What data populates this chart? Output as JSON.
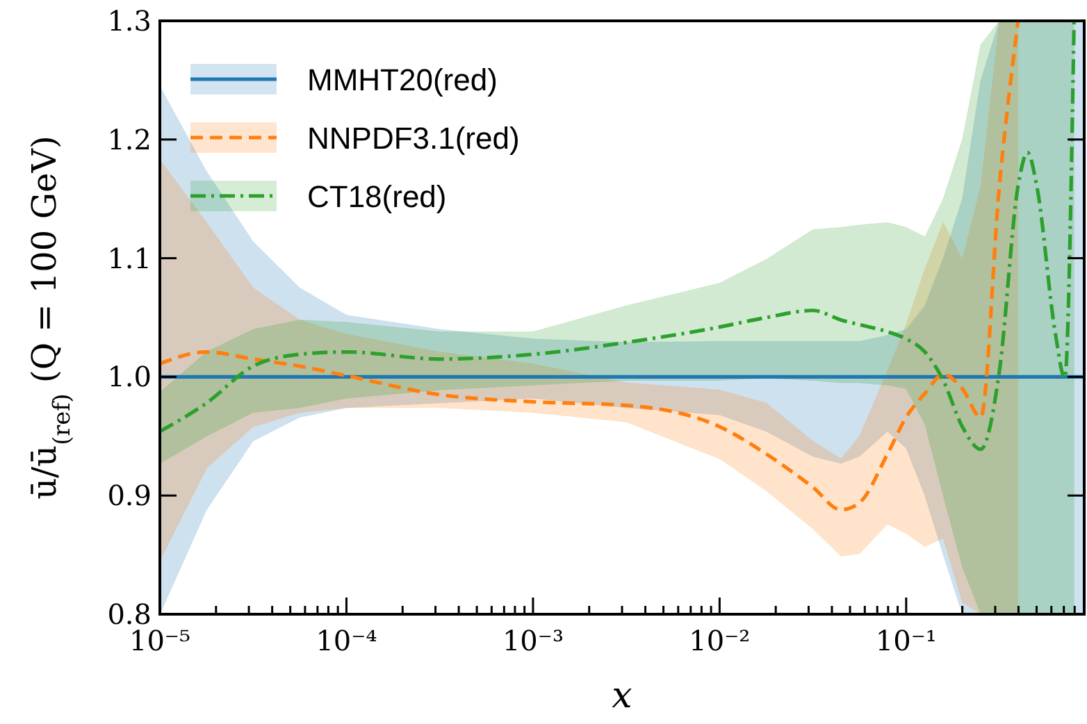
{
  "chart_data": {
    "type": "line",
    "xlabel": "x",
    "ylabel": "ū/ū$_{(ref)}$ (Q = 100 GeV)",
    "log": "x",
    "xlim": [
      1e-05,
      0.9
    ],
    "ylim": [
      0.8,
      1.3
    ],
    "xticks": [
      {
        "value": 1e-05,
        "label": "10⁻⁵"
      },
      {
        "value": 2e-05,
        "label": null
      },
      {
        "value": 3e-05,
        "label": null
      },
      {
        "value": 4e-05,
        "label": null
      },
      {
        "value": 5e-05,
        "label": null
      },
      {
        "value": 6e-05,
        "label": null
      },
      {
        "value": 7e-05,
        "label": null
      },
      {
        "value": 8e-05,
        "label": null
      },
      {
        "value": 9e-05,
        "label": null
      },
      {
        "value": 0.0001,
        "label": "10⁻⁴"
      },
      {
        "value": 0.0002,
        "label": null
      },
      {
        "value": 0.0003,
        "label": null
      },
      {
        "value": 0.0004,
        "label": null
      },
      {
        "value": 0.0005,
        "label": null
      },
      {
        "value": 0.0006,
        "label": null
      },
      {
        "value": 0.0007,
        "label": null
      },
      {
        "value": 0.0008,
        "label": null
      },
      {
        "value": 0.0009,
        "label": null
      },
      {
        "value": 0.001,
        "label": "10⁻³"
      },
      {
        "value": 0.002,
        "label": null
      },
      {
        "value": 0.003,
        "label": null
      },
      {
        "value": 0.004,
        "label": null
      },
      {
        "value": 0.005,
        "label": null
      },
      {
        "value": 0.006,
        "label": null
      },
      {
        "value": 0.007,
        "label": null
      },
      {
        "value": 0.008,
        "label": null
      },
      {
        "value": 0.009,
        "label": null
      },
      {
        "value": 0.01,
        "label": "10⁻²"
      },
      {
        "value": 0.02,
        "label": null
      },
      {
        "value": 0.03,
        "label": null
      },
      {
        "value": 0.04,
        "label": null
      },
      {
        "value": 0.05,
        "label": null
      },
      {
        "value": 0.06,
        "label": null
      },
      {
        "value": 0.07,
        "label": null
      },
      {
        "value": 0.08,
        "label": null
      },
      {
        "value": 0.09,
        "label": null
      },
      {
        "value": 0.1,
        "label": "10⁻¹"
      },
      {
        "value": 0.2,
        "label": null
      },
      {
        "value": 0.3,
        "label": null
      },
      {
        "value": 0.4,
        "label": null
      },
      {
        "value": 0.5,
        "label": null
      },
      {
        "value": 0.6,
        "label": null
      },
      {
        "value": 0.7,
        "label": null
      },
      {
        "value": 0.8,
        "label": null
      },
      {
        "value": 0.9,
        "label": null
      }
    ],
    "yticks": [
      0.8,
      0.9,
      {
        "value": 1,
        "label": "1.0"
      },
      1.1,
      1.2,
      1.3
    ],
    "x": [
      1e-05,
      1.78e-05,
      3.16e-05,
      5.62e-05,
      0.0001,
      0.000316,
      0.001,
      0.00316,
      0.01,
      0.0178,
      0.0316,
      0.0447,
      0.0562,
      0.0794,
      0.1,
      0.126,
      0.158,
      0.2,
      0.251,
      0.316,
      0.398,
      0.447,
      0.501,
      0.631,
      0.708,
      0.794,
      0.891
    ],
    "legend": "top left",
    "grid": false,
    "series": [
      {
        "name": "MMHT20(red)",
        "color": "#1f77b4",
        "line_style": "solid",
        "values": [
          1,
          1,
          1,
          1,
          1,
          1,
          1,
          1,
          1,
          1,
          1,
          1,
          1,
          1,
          1,
          1,
          1,
          1,
          1,
          1,
          1,
          1,
          1,
          1,
          1,
          1,
          1
        ],
        "upper": [
          1.245,
          1.173,
          1.114,
          1.075,
          1.052,
          1.04,
          1.032,
          1.029,
          1.03,
          1.03,
          1.03,
          1.03,
          1.03,
          1.035,
          1.04,
          1.06,
          1.1,
          1.15,
          1.25,
          1.3,
          1.3,
          1.3,
          1.3,
          1.3,
          1.3,
          1.3,
          1.3
        ],
        "lower": [
          0.8,
          0.888,
          0.946,
          0.966,
          0.974,
          0.978,
          0.982,
          0.974,
          0.968,
          0.954,
          0.933,
          0.927,
          0.933,
          0.954,
          0.94,
          0.9,
          0.85,
          0.8,
          0.8,
          0.8,
          0.8,
          0.8,
          0.8,
          0.8,
          0.8,
          0.8,
          0.8
        ]
      },
      {
        "name": "NNPDF3.1(red)",
        "color": "#ff7f0e",
        "line_style": "dashed",
        "values": [
          1.011,
          1.021,
          1.015,
          1.009,
          1.001,
          0.985,
          0.979,
          0.976,
          0.958,
          0.935,
          0.907,
          0.888,
          0.894,
          0.935,
          0.966,
          0.986,
          1.002,
          0.99,
          0.966,
          1.161,
          1.3,
          null,
          null,
          null,
          null,
          null,
          null
        ],
        "upper": [
          1.183,
          1.13,
          1.075,
          1.048,
          1.036,
          1.021,
          1.011,
          0.995,
          0.989,
          0.978,
          0.946,
          0.931,
          0.95,
          1.005,
          1.044,
          1.091,
          1.13,
          1.099,
          1.161,
          1.3,
          1.3,
          null,
          null,
          null,
          null,
          null,
          null
        ],
        "lower": [
          0.845,
          0.923,
          0.958,
          0.97,
          0.974,
          0.974,
          0.97,
          0.962,
          0.931,
          0.904,
          0.872,
          0.849,
          0.851,
          0.876,
          0.868,
          0.857,
          0.864,
          0.81,
          0.8,
          0.8,
          0.8,
          null,
          null,
          null,
          null,
          null,
          null
        ]
      },
      {
        "name": "CT18(red)",
        "color": "#2ca02c",
        "line_style": "dashdot",
        "values": [
          0.954,
          0.978,
          1.009,
          1.019,
          1.021,
          1.015,
          1.019,
          1.029,
          1.042,
          1.05,
          1.056,
          1.048,
          1.044,
          1.038,
          1.032,
          1.021,
          0.997,
          0.958,
          0.939,
          1.005,
          1.161,
          1.189,
          1.161,
          1.036,
          0.999,
          1.3,
          null
        ],
        "upper": [
          0.987,
          1.021,
          1.04,
          1.048,
          1.046,
          1.038,
          1.038,
          1.06,
          1.079,
          1.099,
          1.124,
          1.126,
          1.128,
          1.13,
          1.126,
          1.118,
          1.15,
          1.2,
          1.28,
          1.3,
          1.3,
          1.3,
          1.3,
          1.3,
          1.3,
          1.3,
          null
        ],
        "lower": [
          0.927,
          0.95,
          0.97,
          0.974,
          0.982,
          0.989,
          0.993,
          0.997,
          0.997,
          0.999,
          0.997,
          0.995,
          0.995,
          0.993,
          0.99,
          0.96,
          0.9,
          0.84,
          0.8,
          0.8,
          0.8,
          0.8,
          0.8,
          0.8,
          0.8,
          0.8,
          null
        ]
      }
    ]
  }
}
